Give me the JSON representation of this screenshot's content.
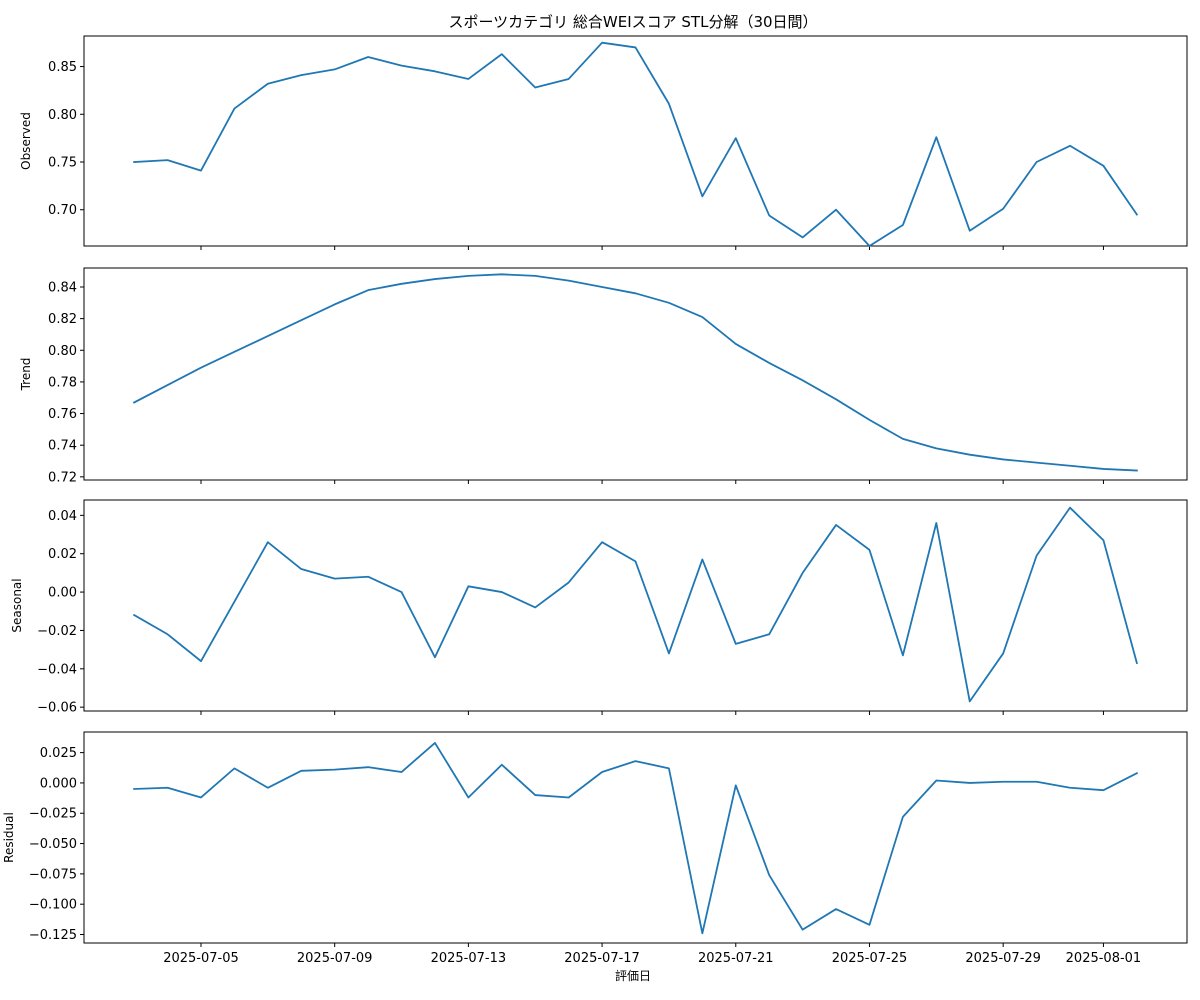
{
  "chart_data": {
    "type": "line",
    "title": "スポーツカテゴリ 総合WEIスコア STL分解（30日間）",
    "xlabel": "評価日",
    "x_ticks": [
      "2025-07-05",
      "2025-07-09",
      "2025-07-13",
      "2025-07-17",
      "2025-07-21",
      "2025-07-25",
      "2025-07-29",
      "2025-08-01"
    ],
    "dates": [
      "2025-07-03",
      "2025-07-04",
      "2025-07-05",
      "2025-07-06",
      "2025-07-07",
      "2025-07-08",
      "2025-07-09",
      "2025-07-10",
      "2025-07-11",
      "2025-07-12",
      "2025-07-13",
      "2025-07-14",
      "2025-07-15",
      "2025-07-16",
      "2025-07-17",
      "2025-07-18",
      "2025-07-19",
      "2025-07-20",
      "2025-07-21",
      "2025-07-22",
      "2025-07-23",
      "2025-07-24",
      "2025-07-25",
      "2025-07-26",
      "2025-07-27",
      "2025-07-28",
      "2025-07-29",
      "2025-07-30",
      "2025-07-31",
      "2025-08-01",
      "2025-08-02"
    ],
    "color": "#1f77b4",
    "grid": false,
    "panels": [
      {
        "ylabel": "Observed",
        "ylim": [
          0.662,
          0.882
        ],
        "yticks": [
          0.7,
          0.75,
          0.8,
          0.85
        ],
        "ytick_labels": [
          "0.70",
          "0.75",
          "0.80",
          "0.85"
        ],
        "values": [
          0.75,
          0.752,
          0.741,
          0.806,
          0.832,
          0.841,
          0.847,
          0.86,
          0.851,
          0.845,
          0.837,
          0.863,
          0.828,
          0.837,
          0.875,
          0.87,
          0.811,
          0.714,
          0.775,
          0.694,
          0.671,
          0.7,
          0.662,
          0.684,
          0.776,
          0.678,
          0.701,
          0.75,
          0.767,
          0.746,
          0.695
        ]
      },
      {
        "ylabel": "Trend",
        "ylim": [
          0.718,
          0.852
        ],
        "yticks": [
          0.72,
          0.74,
          0.76,
          0.78,
          0.8,
          0.82,
          0.84
        ],
        "ytick_labels": [
          "0.72",
          "0.74",
          "0.76",
          "0.78",
          "0.80",
          "0.82",
          "0.84"
        ],
        "values": [
          0.767,
          0.778,
          0.789,
          0.799,
          0.809,
          0.819,
          0.829,
          0.838,
          0.842,
          0.845,
          0.847,
          0.848,
          0.847,
          0.844,
          0.84,
          0.836,
          0.83,
          0.821,
          0.804,
          0.792,
          0.781,
          0.769,
          0.756,
          0.744,
          0.738,
          0.734,
          0.731,
          0.729,
          0.727,
          0.725,
          0.724
        ]
      },
      {
        "ylabel": "Seasonal",
        "ylim": [
          -0.062,
          0.048
        ],
        "yticks": [
          -0.06,
          -0.04,
          -0.02,
          0.0,
          0.02,
          0.04
        ],
        "ytick_labels": [
          "−0.06",
          "−0.04",
          "−0.02",
          "0.00",
          "0.02",
          "0.04"
        ],
        "values": [
          -0.012,
          -0.022,
          -0.036,
          -0.005,
          0.026,
          0.012,
          0.007,
          0.008,
          0.0,
          -0.034,
          0.003,
          0.0,
          -0.008,
          0.005,
          0.026,
          0.016,
          -0.032,
          0.017,
          -0.027,
          -0.022,
          0.01,
          0.035,
          0.022,
          -0.033,
          0.036,
          -0.057,
          -0.032,
          0.019,
          0.044,
          0.027,
          -0.037
        ]
      },
      {
        "ylabel": "Residual",
        "ylim": [
          -0.132,
          0.042
        ],
        "yticks": [
          -0.125,
          -0.1,
          -0.075,
          -0.05,
          -0.025,
          0.0,
          0.025
        ],
        "ytick_labels": [
          "−0.125",
          "−0.100",
          "−0.075",
          "−0.050",
          "−0.025",
          "0.000",
          "0.025"
        ],
        "values": [
          -0.005,
          -0.004,
          -0.012,
          0.012,
          -0.004,
          0.01,
          0.011,
          0.013,
          0.009,
          0.033,
          -0.012,
          0.015,
          -0.01,
          -0.012,
          0.009,
          0.018,
          0.012,
          -0.124,
          -0.002,
          -0.076,
          -0.121,
          -0.104,
          -0.117,
          -0.028,
          0.002,
          0.0,
          0.001,
          0.001,
          -0.004,
          -0.006,
          0.008
        ]
      }
    ]
  }
}
